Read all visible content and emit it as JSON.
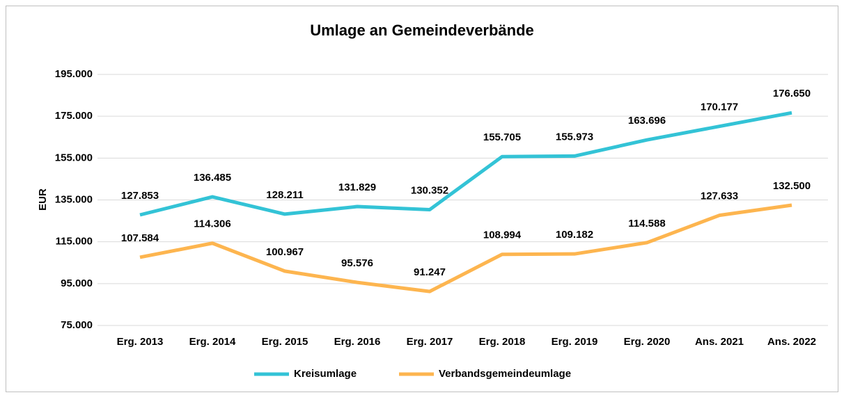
{
  "chart_data": {
    "type": "line",
    "title": "Umlage an Gemeindeverbände",
    "ylabel": "EUR",
    "categories": [
      "Erg. 2013",
      "Erg. 2014",
      "Erg. 2015",
      "Erg. 2016",
      "Erg. 2017",
      "Erg. 2018",
      "Erg. 2019",
      "Erg. 2020",
      "Ans. 2021",
      "Ans. 2022"
    ],
    "series": [
      {
        "name": "Kreisumlage",
        "color": "#33c3d6",
        "values": [
          127853,
          136485,
          128211,
          131829,
          130352,
          155705,
          155973,
          163696,
          170177,
          176650
        ],
        "value_labels": [
          "127.853",
          "136.485",
          "128.211",
          "131.829",
          "130.352",
          "155.705",
          "155.973",
          "163.696",
          "170.177",
          "176.650"
        ]
      },
      {
        "name": "Verbandsgemeindeumlage",
        "color": "#fdb54f",
        "values": [
          107584,
          114306,
          100967,
          95576,
          91247,
          108994,
          109182,
          114588,
          127633,
          132500
        ],
        "value_labels": [
          "107.584",
          "114.306",
          "100.967",
          "95.576",
          "91.247",
          "108.994",
          "109.182",
          "114.588",
          "127.633",
          "132.500"
        ]
      }
    ],
    "ylim": [
      75000,
      195000
    ],
    "yticks": [
      {
        "value": 75000,
        "label": "75.000"
      },
      {
        "value": 95000,
        "label": "95.000"
      },
      {
        "value": 115000,
        "label": "115.000"
      },
      {
        "value": 135000,
        "label": "135.000"
      },
      {
        "value": 155000,
        "label": "155.000"
      },
      {
        "value": 175000,
        "label": "175.000"
      },
      {
        "value": 195000,
        "label": "195.000"
      }
    ],
    "grid": true,
    "legend": "bottom"
  }
}
